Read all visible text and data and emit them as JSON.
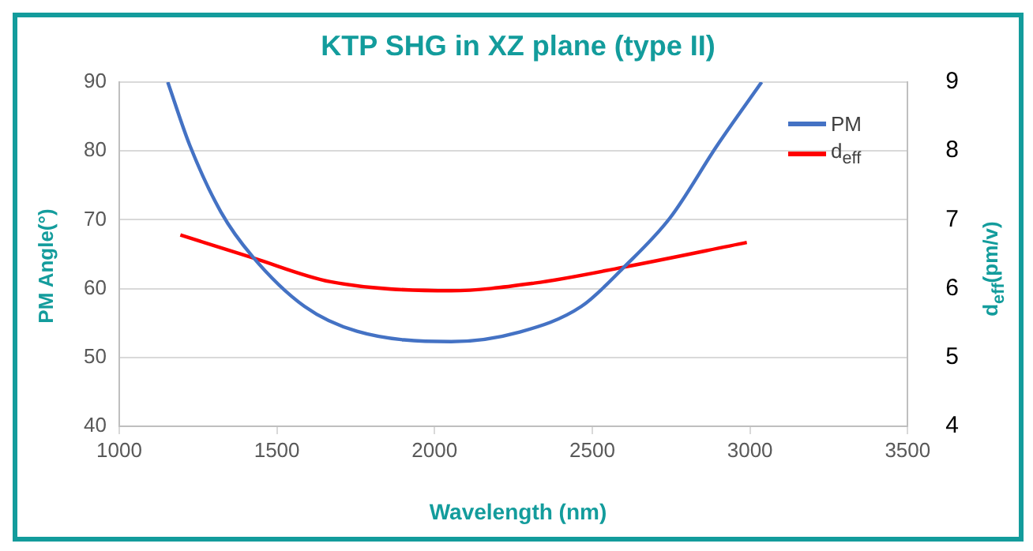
{
  "chart_data": {
    "type": "line",
    "title": "KTP SHG in XZ plane (type II)",
    "xlabel": "Wavelength (nm)",
    "ylabel": "PM Angle(°)",
    "y2label": "d$_{eff}$(pm/v)",
    "series": [
      {
        "name": "PM",
        "color": "#4472c4",
        "x": [
          1154,
          1224,
          1323,
          1422,
          1588,
          1754,
          2052,
          2270,
          2465,
          2598,
          2747,
          2896,
          3037
        ],
        "values": [
          90,
          80.8,
          71.1,
          64.7,
          57.4,
          53.8,
          52.3,
          53.7,
          57.4,
          63.0,
          70.3,
          80.8,
          90
        ]
      },
      {
        "name": "d$_{eff}$",
        "color": "#ff0000",
        "axis": "y2",
        "x": [
          1194,
          1422,
          1670,
          2052,
          2316,
          2598,
          2990
        ],
        "values": [
          6.78,
          6.45,
          6.1,
          5.97,
          6.08,
          6.31,
          6.67
        ]
      }
    ],
    "xlim": [
      1000,
      3500
    ],
    "xticks": [
      1000,
      1500,
      2000,
      2500,
      3000,
      3500
    ],
    "ylim": [
      40,
      90
    ],
    "yticks": [
      40,
      50,
      60,
      70,
      80,
      90
    ],
    "y2lim": [
      4,
      9
    ],
    "y2ticks": [
      4,
      5,
      6,
      7,
      8,
      9
    ],
    "grid": "y",
    "legend": "top right",
    "marker": "none",
    "line_style": "solid"
  }
}
